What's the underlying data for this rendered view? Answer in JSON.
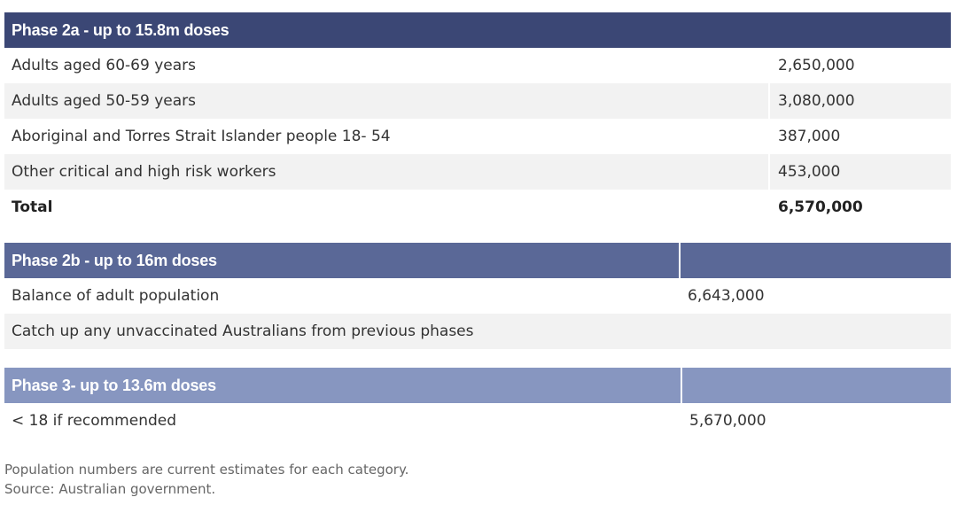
{
  "colors": {
    "phase2a_header": "#3b4775",
    "phase2b_header": "#5a6897",
    "phase3_header": "#8796c0",
    "row_alt": "#f2f2f2"
  },
  "phase2a": {
    "title": "Phase 2a - up to 15.8m doses",
    "rows": [
      {
        "label": "Adults aged 60-69 years",
        "value": "2,650,000"
      },
      {
        "label": "Adults aged 50-59 years",
        "value": "3,080,000"
      },
      {
        "label": "Aboriginal and Torres Strait Islander people 18- 54",
        "value": "387,000"
      },
      {
        "label": "Other critical and high risk workers",
        "value": "453,000"
      }
    ],
    "total_label": "Total",
    "total_value": "6,570,000"
  },
  "phase2b": {
    "title": "Phase 2b - up to 16m doses",
    "rows": [
      {
        "label": "Balance of adult population",
        "value": "6,643,000"
      },
      {
        "label": "Catch up any unvaccinated Australians from previous phases",
        "value": ""
      }
    ]
  },
  "phase3": {
    "title": "Phase 3- up to 13.6m doses",
    "rows": [
      {
        "label": "< 18 if recommended",
        "value": "5,670,000"
      }
    ]
  },
  "footnote": {
    "line1": "Population numbers are current estimates for each category.",
    "line2": "Source: Australian government."
  }
}
